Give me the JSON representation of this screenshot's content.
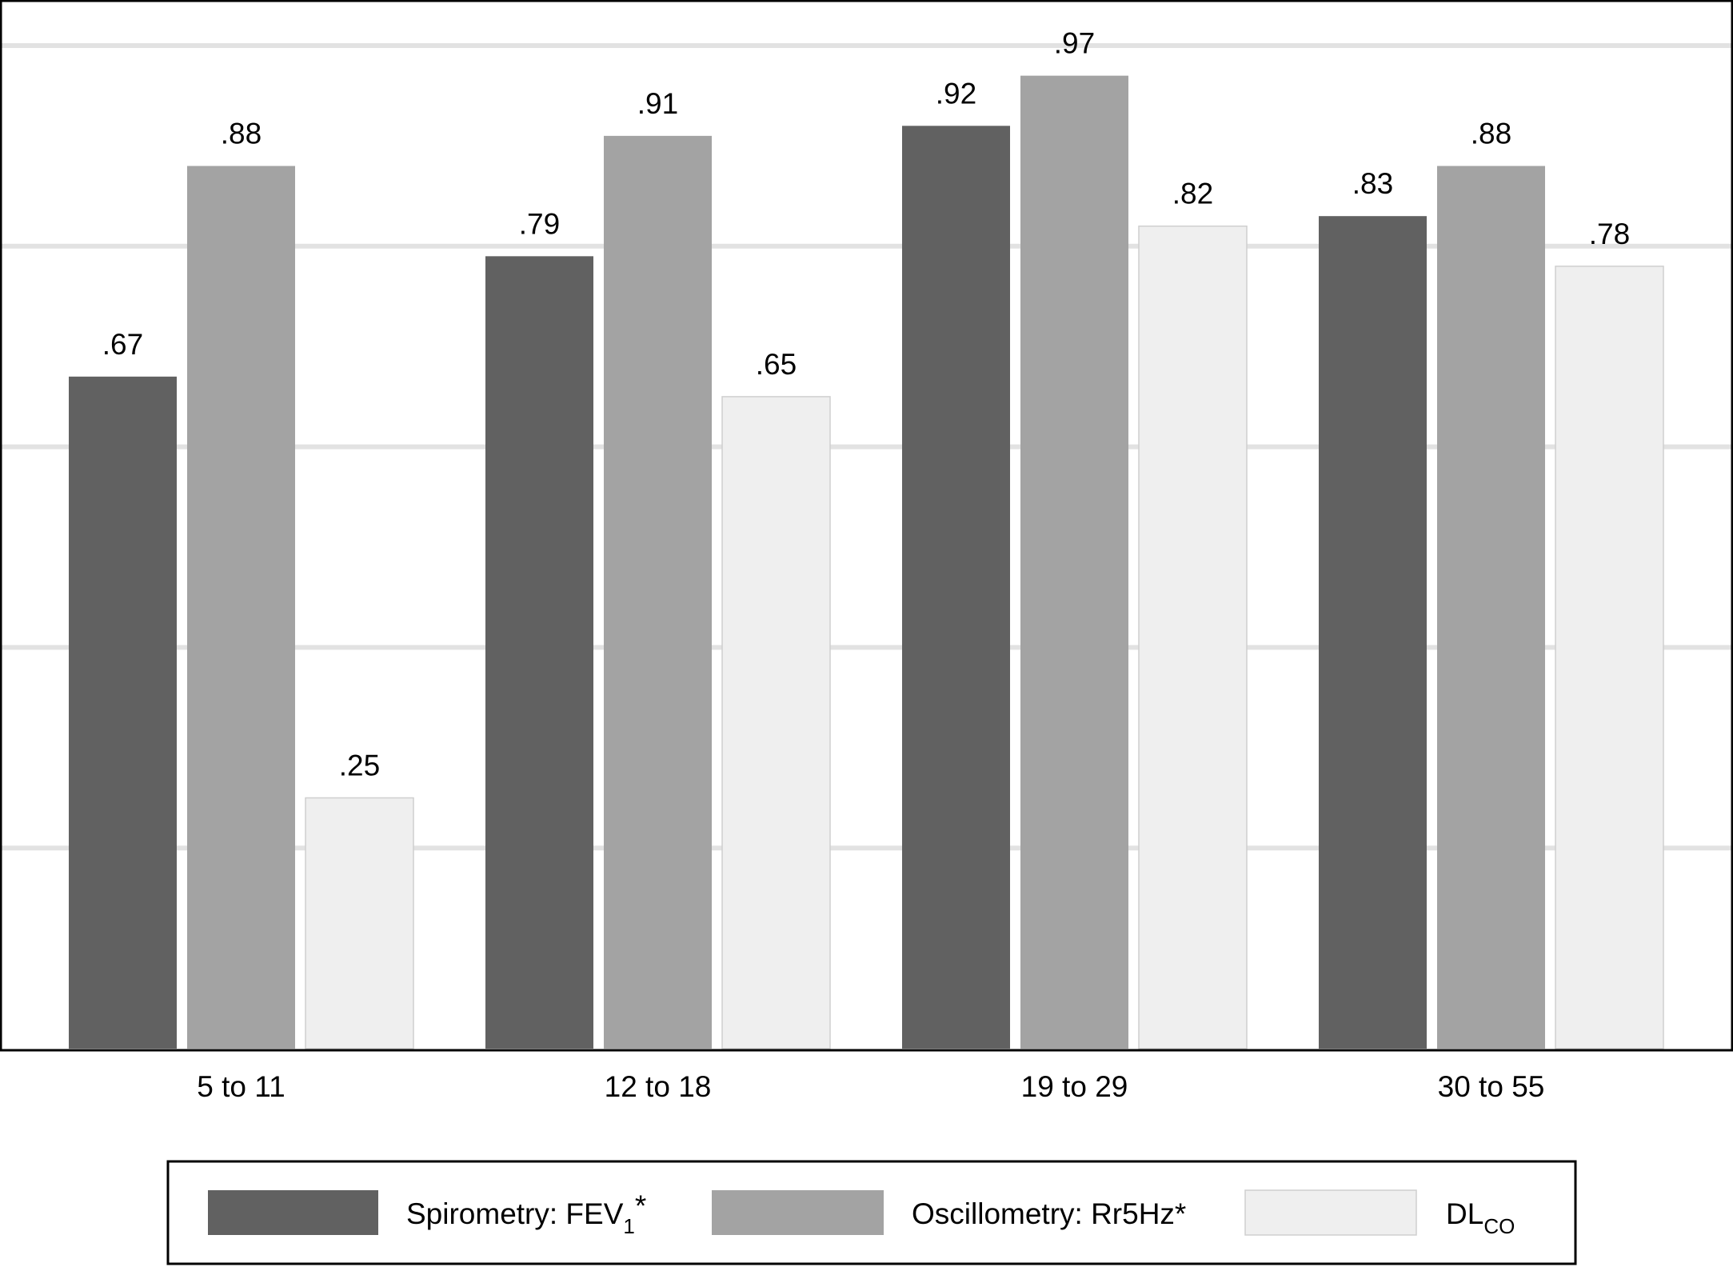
{
  "chart_data": {
    "type": "bar",
    "categories": [
      "5 to 11",
      "12 to 18",
      "19 to 29",
      "30 to 55"
    ],
    "series": [
      {
        "name": "Spirometry: FEV1*",
        "values": [
          0.67,
          0.79,
          0.92,
          0.83
        ],
        "labels": [
          ".67",
          ".79",
          ".92",
          ".83"
        ],
        "color": "#616161"
      },
      {
        "name": "Oscillometry: Rr5Hz*",
        "values": [
          0.88,
          0.91,
          0.97,
          0.88
        ],
        "labels": [
          ".88",
          ".91",
          ".97",
          ".88"
        ],
        "color": "#a3a3a3"
      },
      {
        "name": "DLCO",
        "values": [
          0.25,
          0.65,
          0.82,
          0.78
        ],
        "labels": [
          ".25",
          ".65",
          ".82",
          ".78"
        ],
        "color": "#efefef"
      }
    ],
    "ylim": [
      0,
      1
    ],
    "grid": true,
    "legend_position": "bottom",
    "legend": {
      "spirometry": {
        "main": "Spirometry: FEV",
        "sub": "1",
        "suffix": "*"
      },
      "oscillometry": {
        "main": "Oscillometry: Rr5Hz*"
      },
      "dlco": {
        "main": "DL",
        "sub": "CO"
      }
    }
  }
}
